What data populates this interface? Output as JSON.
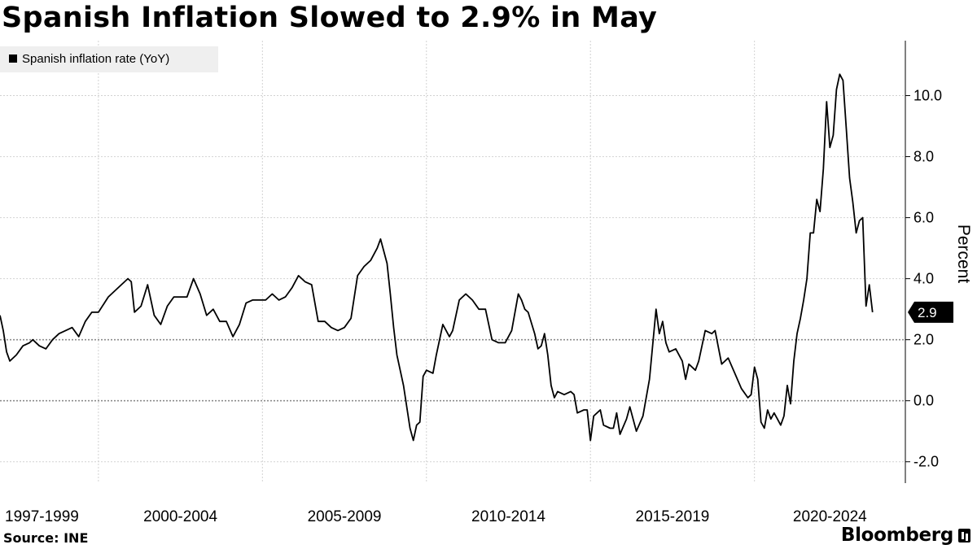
{
  "chart_data": {
    "type": "line",
    "title": "Spanish Inflation Slowed to 2.9% in May",
    "legend": {
      "label": "Spanish inflation rate (YoY)",
      "position": "top-left"
    },
    "ylabel": "Percent",
    "ylim": [
      -2.7,
      11.8
    ],
    "yticks": [
      -2.0,
      0.0,
      2.0,
      4.0,
      6.0,
      8.0,
      10.0
    ],
    "ytick_labels": [
      "-2.0",
      "0.0",
      "2.0",
      "4.0",
      "6.0",
      "8.0",
      "10.0"
    ],
    "reference_lines": [
      0,
      2
    ],
    "xlim": [
      1997.0,
      2024.6
    ],
    "x_groups": [
      {
        "label": "1997-1999",
        "start": 1997,
        "end": 2000
      },
      {
        "label": "2000-2004",
        "start": 2000,
        "end": 2005
      },
      {
        "label": "2005-2009",
        "start": 2005,
        "end": 2010
      },
      {
        "label": "2010-2014",
        "start": 2010,
        "end": 2015
      },
      {
        "label": "2015-2019",
        "start": 2015,
        "end": 2020
      },
      {
        "label": "2020-2024",
        "start": 2020,
        "end": 2024.6
      }
    ],
    "last_value_label": "2.9",
    "series": [
      {
        "name": "Spanish inflation rate (YoY)",
        "points": [
          [
            1997.0,
            2.8
          ],
          [
            1997.1,
            2.3
          ],
          [
            1997.2,
            1.6
          ],
          [
            1997.3,
            1.3
          ],
          [
            1997.5,
            1.5
          ],
          [
            1997.7,
            1.8
          ],
          [
            1997.9,
            1.9
          ],
          [
            1998.0,
            2.0
          ],
          [
            1998.2,
            1.8
          ],
          [
            1998.4,
            1.7
          ],
          [
            1998.6,
            2.0
          ],
          [
            1998.8,
            2.2
          ],
          [
            1999.0,
            2.3
          ],
          [
            1999.2,
            2.4
          ],
          [
            1999.4,
            2.1
          ],
          [
            1999.6,
            2.6
          ],
          [
            1999.8,
            2.9
          ],
          [
            2000.0,
            2.9
          ],
          [
            2000.3,
            3.4
          ],
          [
            2000.6,
            3.7
          ],
          [
            2000.9,
            4.0
          ],
          [
            2001.0,
            3.9
          ],
          [
            2001.1,
            2.9
          ],
          [
            2001.3,
            3.1
          ],
          [
            2001.5,
            3.8
          ],
          [
            2001.7,
            2.8
          ],
          [
            2001.9,
            2.5
          ],
          [
            2002.1,
            3.1
          ],
          [
            2002.3,
            3.4
          ],
          [
            2002.5,
            3.4
          ],
          [
            2002.7,
            3.4
          ],
          [
            2002.9,
            4.0
          ],
          [
            2003.1,
            3.5
          ],
          [
            2003.3,
            2.8
          ],
          [
            2003.5,
            3.0
          ],
          [
            2003.7,
            2.6
          ],
          [
            2003.9,
            2.6
          ],
          [
            2004.1,
            2.1
          ],
          [
            2004.3,
            2.5
          ],
          [
            2004.5,
            3.2
          ],
          [
            2004.7,
            3.3
          ],
          [
            2004.9,
            3.3
          ],
          [
            2005.1,
            3.3
          ],
          [
            2005.3,
            3.5
          ],
          [
            2005.5,
            3.3
          ],
          [
            2005.7,
            3.4
          ],
          [
            2005.9,
            3.7
          ],
          [
            2006.1,
            4.1
          ],
          [
            2006.3,
            3.9
          ],
          [
            2006.5,
            3.8
          ],
          [
            2006.7,
            2.6
          ],
          [
            2006.9,
            2.6
          ],
          [
            2007.1,
            2.4
          ],
          [
            2007.3,
            2.3
          ],
          [
            2007.5,
            2.4
          ],
          [
            2007.7,
            2.7
          ],
          [
            2007.9,
            4.1
          ],
          [
            2008.1,
            4.4
          ],
          [
            2008.3,
            4.6
          ],
          [
            2008.5,
            5.0
          ],
          [
            2008.6,
            5.3
          ],
          [
            2008.8,
            4.5
          ],
          [
            2008.9,
            3.5
          ],
          [
            2009.0,
            2.4
          ],
          [
            2009.1,
            1.5
          ],
          [
            2009.3,
            0.5
          ],
          [
            2009.4,
            -0.2
          ],
          [
            2009.5,
            -0.9
          ],
          [
            2009.6,
            -1.3
          ],
          [
            2009.7,
            -0.8
          ],
          [
            2009.8,
            -0.7
          ],
          [
            2009.9,
            0.8
          ],
          [
            2010.0,
            1.0
          ],
          [
            2010.2,
            0.9
          ],
          [
            2010.3,
            1.5
          ],
          [
            2010.5,
            2.5
          ],
          [
            2010.7,
            2.1
          ],
          [
            2010.8,
            2.3
          ],
          [
            2011.0,
            3.3
          ],
          [
            2011.2,
            3.5
          ],
          [
            2011.4,
            3.3
          ],
          [
            2011.6,
            3.0
          ],
          [
            2011.8,
            3.0
          ],
          [
            2012.0,
            2.0
          ],
          [
            2012.2,
            1.9
          ],
          [
            2012.4,
            1.9
          ],
          [
            2012.6,
            2.3
          ],
          [
            2012.8,
            3.5
          ],
          [
            2012.9,
            3.3
          ],
          [
            2013.0,
            3.0
          ],
          [
            2013.1,
            2.9
          ],
          [
            2013.3,
            2.2
          ],
          [
            2013.4,
            1.7
          ],
          [
            2013.5,
            1.8
          ],
          [
            2013.6,
            2.2
          ],
          [
            2013.7,
            1.5
          ],
          [
            2013.8,
            0.5
          ],
          [
            2013.9,
            0.1
          ],
          [
            2014.0,
            0.3
          ],
          [
            2014.2,
            0.2
          ],
          [
            2014.4,
            0.3
          ],
          [
            2014.5,
            0.2
          ],
          [
            2014.6,
            -0.4
          ],
          [
            2014.8,
            -0.3
          ],
          [
            2014.9,
            -0.3
          ],
          [
            2015.0,
            -1.3
          ],
          [
            2015.1,
            -0.5
          ],
          [
            2015.3,
            -0.3
          ],
          [
            2015.4,
            -0.8
          ],
          [
            2015.6,
            -0.9
          ],
          [
            2015.7,
            -0.9
          ],
          [
            2015.8,
            -0.4
          ],
          [
            2015.9,
            -1.1
          ],
          [
            2016.1,
            -0.6
          ],
          [
            2016.2,
            -0.2
          ],
          [
            2016.4,
            -1.0
          ],
          [
            2016.6,
            -0.5
          ],
          [
            2016.8,
            0.7
          ],
          [
            2017.0,
            3.0
          ],
          [
            2017.1,
            2.2
          ],
          [
            2017.2,
            2.6
          ],
          [
            2017.3,
            1.9
          ],
          [
            2017.4,
            1.6
          ],
          [
            2017.6,
            1.7
          ],
          [
            2017.8,
            1.3
          ],
          [
            2017.9,
            0.7
          ],
          [
            2018.0,
            1.2
          ],
          [
            2018.2,
            1.0
          ],
          [
            2018.3,
            1.3
          ],
          [
            2018.5,
            2.3
          ],
          [
            2018.7,
            2.2
          ],
          [
            2018.8,
            2.3
          ],
          [
            2019.0,
            1.2
          ],
          [
            2019.2,
            1.4
          ],
          [
            2019.4,
            0.9
          ],
          [
            2019.6,
            0.4
          ],
          [
            2019.8,
            0.1
          ],
          [
            2019.9,
            0.2
          ],
          [
            2020.0,
            1.1
          ],
          [
            2020.1,
            0.7
          ],
          [
            2020.2,
            -0.7
          ],
          [
            2020.3,
            -0.9
          ],
          [
            2020.4,
            -0.3
          ],
          [
            2020.5,
            -0.6
          ],
          [
            2020.6,
            -0.4
          ],
          [
            2020.7,
            -0.6
          ],
          [
            2020.8,
            -0.8
          ],
          [
            2020.9,
            -0.5
          ],
          [
            2021.0,
            0.5
          ],
          [
            2021.1,
            -0.1
          ],
          [
            2021.2,
            1.3
          ],
          [
            2021.3,
            2.2
          ],
          [
            2021.4,
            2.7
          ],
          [
            2021.5,
            3.3
          ],
          [
            2021.6,
            4.0
          ],
          [
            2021.7,
            5.5
          ],
          [
            2021.8,
            5.5
          ],
          [
            2021.9,
            6.6
          ],
          [
            2022.0,
            6.2
          ],
          [
            2022.1,
            7.6
          ],
          [
            2022.2,
            9.8
          ],
          [
            2022.3,
            8.3
          ],
          [
            2022.4,
            8.7
          ],
          [
            2022.5,
            10.2
          ],
          [
            2022.6,
            10.7
          ],
          [
            2022.7,
            10.5
          ],
          [
            2022.8,
            8.9
          ],
          [
            2022.9,
            7.3
          ],
          [
            2023.0,
            6.5
          ],
          [
            2023.1,
            5.5
          ],
          [
            2023.2,
            5.9
          ],
          [
            2023.3,
            6.0
          ],
          [
            2023.4,
            3.1
          ],
          [
            2023.5,
            3.8
          ],
          [
            2023.6,
            2.9
          ]
        ]
      }
    ]
  },
  "footer": {
    "source": "Source: INE",
    "brand": "Bloomberg"
  }
}
